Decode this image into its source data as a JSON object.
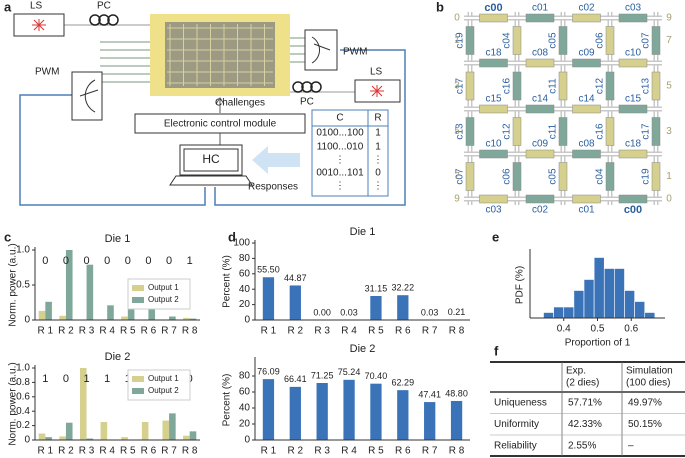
{
  "panel_labels": [
    "a",
    "b",
    "c",
    "d",
    "e",
    "f"
  ],
  "diagram_a": {
    "ls_left": "LS",
    "pc_left": "PC",
    "pwm_left": "PWM",
    "pwm_right": "PWM",
    "ls_right": "LS",
    "pc_right": "PC",
    "challenges": "Challenges",
    "control": "Electronic control module",
    "hc": "HC",
    "responses": "Responses",
    "crp_table": {
      "header": [
        "C",
        "R"
      ],
      "rows": [
        [
          "0100...100",
          "1"
        ],
        [
          "1100...010",
          "1"
        ],
        [
          "⋮",
          "⋮"
        ],
        [
          "0010...101",
          "0"
        ],
        [
          "⋮",
          "⋮"
        ]
      ]
    }
  },
  "grid_b": {
    "numbers": [
      0,
      9,
      9,
      0,
      1,
      3,
      5,
      7,
      7,
      5,
      3,
      1
    ],
    "labels": [
      "c00",
      "c01",
      "c02",
      "c03",
      "c18",
      "c08",
      "c09",
      "c10",
      "c15",
      "c14",
      "c14",
      "c15",
      "c10",
      "c09",
      "c08",
      "c18",
      "c03",
      "c02",
      "c01",
      "c00",
      "c19",
      "c17",
      "c13",
      "c07",
      "c04",
      "c16",
      "c12",
      "c06",
      "c05",
      "c11",
      "c11",
      "c05",
      "c06",
      "c12",
      "c16",
      "c04",
      "c07",
      "c13",
      "c17",
      "c19"
    ]
  },
  "chart_data": [
    {
      "type": "bar",
      "title": "Die 1",
      "ylabel": "Norm. power (a.u.)",
      "categories": [
        "R 1",
        "R 2",
        "R 3",
        "R 4",
        "R 5",
        "R 6",
        "R 7",
        "R 8"
      ],
      "series": [
        {
          "name": "Output 1",
          "color": "#d6d08e",
          "values": [
            0.13,
            0.06,
            0,
            0,
            0.05,
            0,
            0,
            0.03
          ]
        },
        {
          "name": "Output 2",
          "color": "#7fa89b",
          "values": [
            0.26,
            1.0,
            0.79,
            0.21,
            0.2,
            0.52,
            0.05,
            0.02
          ]
        }
      ],
      "bit_labels": [
        0,
        0,
        0,
        0,
        0,
        0,
        0,
        1
      ],
      "ylim": [
        0,
        1
      ],
      "yticks": [
        0,
        0.5,
        {
          "value": 1,
          "label": "1.0"
        }
      ],
      "legend": "center right"
    },
    {
      "type": "bar",
      "title": "Die 2",
      "ylabel": "Norm. power (a.u.)",
      "categories": [
        "R 1",
        "R 2",
        "R 3",
        "R 4",
        "R 5",
        "R 6",
        "R 7",
        "R 8"
      ],
      "series": [
        {
          "name": "Output 1",
          "color": "#d6d08e",
          "values": [
            0.09,
            0.05,
            1.0,
            0.25,
            0.04,
            0.25,
            0.27,
            0.06
          ]
        },
        {
          "name": "Output 2",
          "color": "#7fa89b",
          "values": [
            0.04,
            0.24,
            0.02,
            0,
            0,
            0,
            0.37,
            0.12
          ]
        }
      ],
      "bit_labels": [
        1,
        0,
        1,
        1,
        1,
        1,
        0,
        0
      ],
      "ylim": [
        0,
        1
      ],
      "yticks": [
        0,
        0.2,
        0.4,
        0.6,
        0.8,
        {
          "value": 1,
          "label": "1.0"
        }
      ],
      "legend": "upper right"
    },
    {
      "type": "bar",
      "title": "Die 1",
      "ylabel": "Percent (%)",
      "categories": [
        "R 1",
        "R 2",
        "R 3",
        "R 4",
        "R 5",
        "R 6",
        "R 7",
        "R 8"
      ],
      "values": [
        55.5,
        44.87,
        0,
        0.03,
        31.15,
        32.22,
        0.03,
        0.21
      ],
      "value_labels": [
        "55.50",
        "44.87",
        "0.00",
        "0.03",
        "31.15",
        "32.22",
        "0.03",
        "0.21"
      ],
      "color": "#3b73b9",
      "ylim": [
        0,
        100
      ],
      "yticks": [
        0,
        20,
        40,
        60,
        80,
        100
      ]
    },
    {
      "type": "bar",
      "title": "Die 2",
      "ylabel": "Percent (%)",
      "categories": [
        "R 1",
        "R 2",
        "R 3",
        "R 4",
        "R 5",
        "R 6",
        "R 7",
        "R 8"
      ],
      "values": [
        76.09,
        66.41,
        71.25,
        75.24,
        70.4,
        62.29,
        47.41,
        48.8
      ],
      "value_labels": [
        "76.09",
        "66.41",
        "71.25",
        "75.24",
        "70.40",
        "62.29",
        "47.41",
        "48.80"
      ],
      "color": "#3b73b9",
      "ylim": [
        0,
        100
      ],
      "yticks": [
        0,
        20,
        40,
        60,
        80
      ]
    },
    {
      "type": "histogram",
      "xlabel": "Proportion of 1",
      "ylabel": "PDF (%)",
      "bins": [
        0.34,
        0.37,
        0.4,
        0.43,
        0.46,
        0.49,
        0.52,
        0.55,
        0.58,
        0.61,
        0.64,
        0.67
      ],
      "values": [
        1,
        2,
        2,
        5,
        7,
        11,
        9,
        9,
        5,
        3,
        1
      ],
      "color": "#3b73b9",
      "xlim": [
        0.3,
        0.7
      ],
      "xticks": [
        0.4,
        0.5,
        0.6
      ],
      "ylim": [
        0,
        12
      ]
    }
  ],
  "table_f": {
    "header": [
      [
        "Exp.",
        "(2 dies)"
      ],
      [
        "Simulation",
        "(100 dies)"
      ]
    ],
    "rows": [
      [
        "Uniqueness",
        "57.71%",
        "49.97%"
      ],
      [
        "Uniformity",
        "42.33%",
        "50.15%"
      ],
      [
        "Reliability",
        "2.55%",
        "–"
      ]
    ]
  }
}
